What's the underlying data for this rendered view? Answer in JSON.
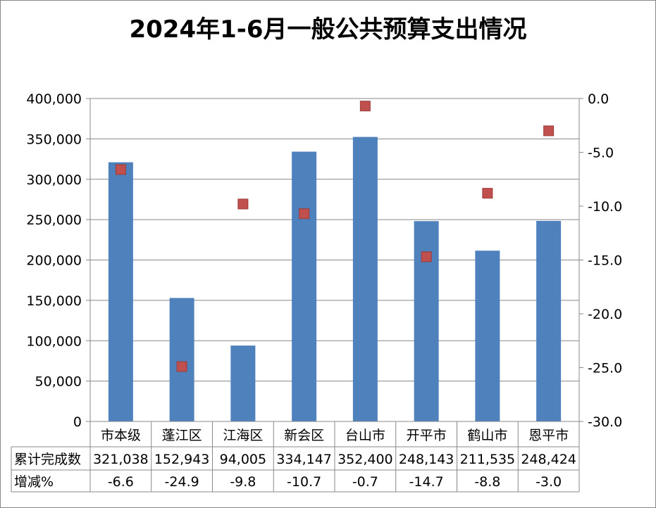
{
  "chart_data": {
    "type": "bar+scatter",
    "title": "2024年1-6月一般公共预算支出情况",
    "categories": [
      "市本级",
      "蓬江区",
      "江海区",
      "新会区",
      "台山市",
      "开平市",
      "鹤山市",
      "恩平市"
    ],
    "series": [
      {
        "name": "累计完成数",
        "type": "bar",
        "axis": "left",
        "color": "#4F81BD",
        "values": [
          321038,
          152943,
          94005,
          334147,
          352400,
          248143,
          211535,
          248424
        ],
        "labels": [
          "321,038",
          "152,943",
          "94,005",
          "334,147",
          "352,400",
          "248,143",
          "211,535",
          "248,424"
        ]
      },
      {
        "name": "增减%",
        "type": "scatter",
        "axis": "right",
        "color": "#C0504D",
        "values": [
          -6.6,
          -24.9,
          -9.8,
          -10.7,
          -0.7,
          -14.7,
          -8.8,
          -3.0
        ],
        "labels": [
          "-6.6",
          "-24.9",
          "-9.8",
          "-10.7",
          "-0.7",
          "-14.7",
          "-8.8",
          "-3.0"
        ]
      }
    ],
    "left_axis": {
      "ylim": [
        0,
        400000
      ],
      "ticks": [
        "0",
        "50,000",
        "100,000",
        "150,000",
        "200,000",
        "250,000",
        "300,000",
        "350,000",
        "400,000"
      ]
    },
    "right_axis": {
      "ylim": [
        -30,
        0
      ],
      "ticks": [
        "-30.0",
        "-25.0",
        "-20.0",
        "-15.0",
        "-10.0",
        "-5.0",
        "0.0"
      ]
    },
    "grid": true,
    "legend": "data-table"
  }
}
